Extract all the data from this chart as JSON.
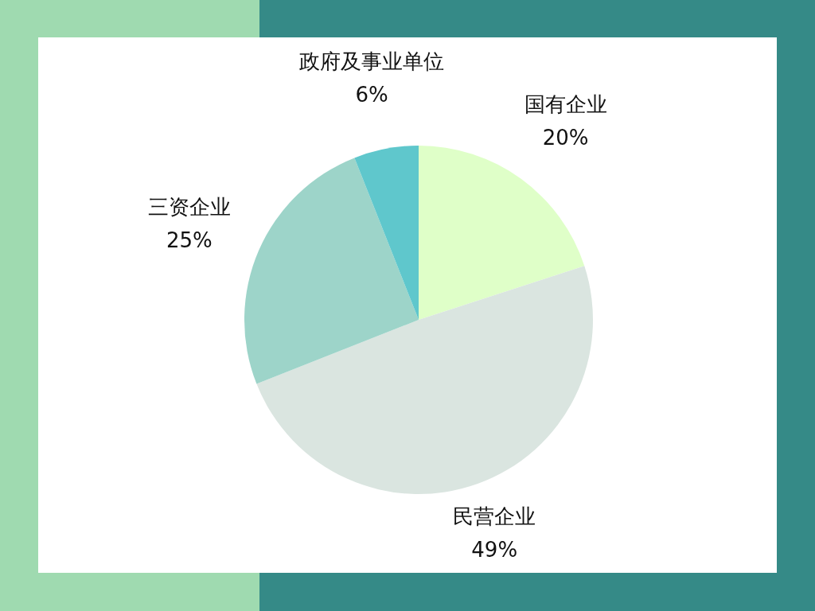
{
  "chart_data": {
    "type": "pie",
    "categories": [
      "国有企业",
      "民营企业",
      "三资企业",
      "政府及事业单位"
    ],
    "values": [
      20,
      49,
      25,
      6
    ],
    "colors": [
      "#dfffc8",
      "#dae5e0",
      "#9dd4c9",
      "#5fc7cc"
    ],
    "value_labels": [
      "20%",
      "49%",
      "25%",
      "6%"
    ]
  }
}
